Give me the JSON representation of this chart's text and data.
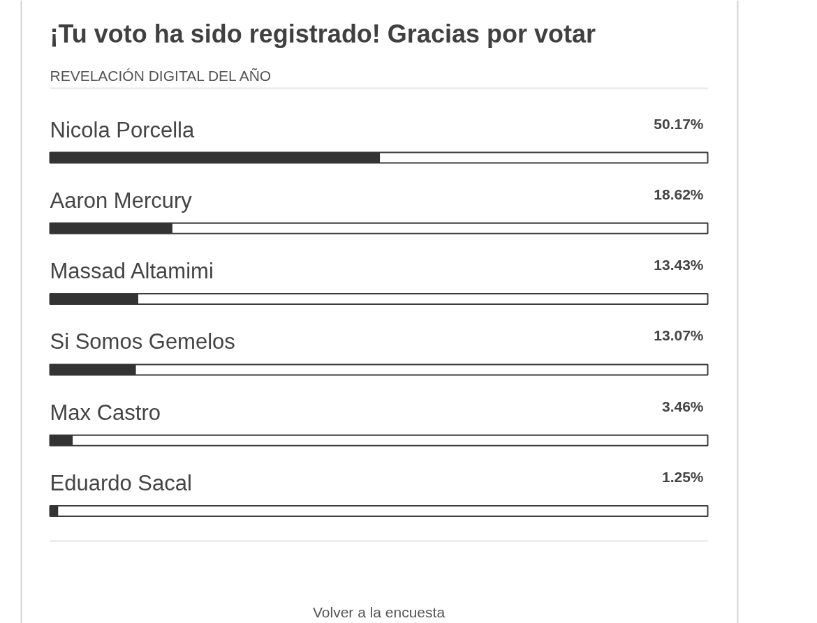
{
  "chart_data": {
    "type": "bar",
    "orientation": "horizontal",
    "title": "¡Tu voto ha sido registrado! Gracias por votar",
    "subtitle": "REVELACIÓN DIGITAL DEL AÑO",
    "categories": [
      "Nicola Porcella",
      "Aaron Mercury",
      "Massad Altamimi",
      "Si Somos Gemelos",
      "Max Castro",
      "Eduardo Sacal"
    ],
    "values": [
      50.17,
      18.62,
      13.43,
      13.07,
      3.46,
      1.25
    ],
    "value_labels": [
      "50.17%",
      "18.62%",
      "13.43%",
      "13.07%",
      "3.46%",
      "1.25%"
    ],
    "color": "#333333",
    "xlim": [
      0,
      100
    ],
    "tick_labels": false,
    "annotations": [
      "Volver a la encuesta"
    ]
  }
}
